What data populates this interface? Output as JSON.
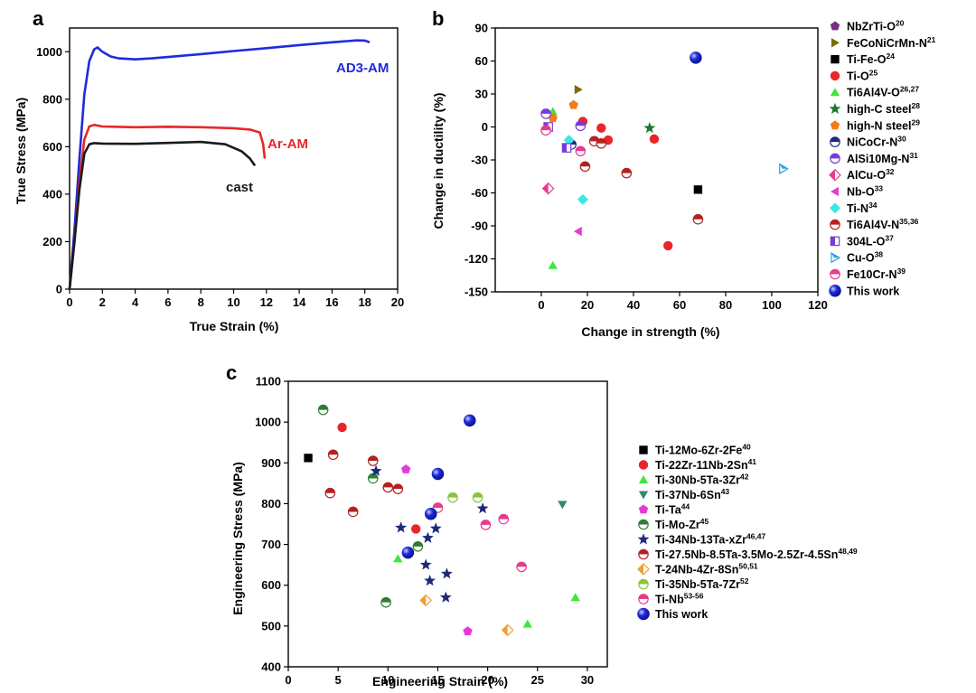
{
  "colors": {
    "blue": "#1f2bdb",
    "red": "#e8262a",
    "black": "#1a1a1a"
  },
  "chart_data": [
    {
      "panel": "a",
      "type": "line",
      "xlabel": "True Strain (%)",
      "ylabel": "True Stress (MPa)",
      "xlim": [
        0,
        20
      ],
      "ylim": [
        0,
        1100
      ],
      "xticks": [
        0,
        2,
        4,
        6,
        8,
        10,
        12,
        14,
        16,
        18,
        20
      ],
      "yticks": [
        0,
        200,
        400,
        600,
        800,
        1000
      ],
      "series": [
        {
          "name": "AD3-AM",
          "color": "#1f2bdb",
          "x": [
            0,
            0.3,
            0.6,
            0.9,
            1.2,
            1.5,
            1.7,
            2.0,
            2.5,
            3.0,
            4.0,
            5.0,
            6.0,
            8.0,
            10.0,
            12.0,
            14.0,
            16.0,
            17.5,
            18.0,
            18.3
          ],
          "y": [
            0,
            250,
            550,
            820,
            960,
            1010,
            1018,
            1000,
            980,
            972,
            968,
            972,
            978,
            990,
            1003,
            1015,
            1028,
            1040,
            1048,
            1047,
            1040
          ]
        },
        {
          "name": "Ar-AM",
          "color": "#e8262a",
          "x": [
            0,
            0.3,
            0.6,
            0.9,
            1.2,
            1.5,
            2.0,
            4.0,
            6.0,
            8.0,
            10.0,
            11.0,
            11.6,
            11.8,
            11.9
          ],
          "y": [
            0,
            200,
            450,
            630,
            685,
            692,
            685,
            682,
            684,
            682,
            678,
            672,
            660,
            610,
            550
          ]
        },
        {
          "name": "cast",
          "color": "#1a1a1a",
          "x": [
            0,
            0.3,
            0.6,
            0.9,
            1.2,
            1.5,
            2.0,
            4.0,
            6.0,
            8.0,
            9.5,
            10.5,
            11.0,
            11.3
          ],
          "y": [
            0,
            200,
            420,
            570,
            610,
            615,
            613,
            612,
            616,
            620,
            610,
            580,
            550,
            520
          ]
        }
      ]
    },
    {
      "panel": "b",
      "type": "scatter",
      "xlabel": "Change in strength (%)",
      "ylabel": "Change in ductility (%)",
      "xlim": [
        -20,
        120
      ],
      "ylim": [
        -150,
        90
      ],
      "xticks": [
        0,
        20,
        40,
        60,
        80,
        100,
        120
      ],
      "yticks": [
        -150,
        -120,
        -90,
        -60,
        -30,
        0,
        30,
        60,
        90
      ],
      "series": [
        {
          "name": "NbZrTi-O",
          "sup": "20",
          "marker": "pentagon",
          "color": "#7b2d7e",
          "points": [
            [
              17,
              1
            ]
          ]
        },
        {
          "name": "FeCoNiCrMn-N",
          "sup": "21",
          "marker": "tri-right",
          "color": "#7d6a12",
          "points": [
            [
              16,
              34
            ]
          ]
        },
        {
          "name": "Ti-Fe-O",
          "sup": "24",
          "marker": "square",
          "color": "#000000",
          "points": [
            [
              68,
              -57
            ]
          ]
        },
        {
          "name": "Ti-O",
          "sup": "25",
          "marker": "circle",
          "color": "#e8262a",
          "points": [
            [
              18,
              5
            ],
            [
              26,
              -1
            ],
            [
              29,
              -12
            ],
            [
              49,
              -11
            ],
            [
              55,
              -108
            ]
          ]
        },
        {
          "name": "Ti6Al4V-O",
          "sup": "26,27",
          "marker": "tri-up",
          "color": "#3ee63e",
          "points": [
            [
              5,
              14
            ],
            [
              5,
              -126
            ]
          ]
        },
        {
          "name": "high-C steel",
          "sup": "28",
          "marker": "star",
          "color": "#1d7a2a",
          "points": [
            [
              47,
              -1
            ]
          ]
        },
        {
          "name": "high-N steel",
          "sup": "29",
          "marker": "pentagon",
          "color": "#f07c1a",
          "points": [
            [
              14,
              20
            ],
            [
              5,
              8
            ]
          ]
        },
        {
          "name": "NiCoCr-N",
          "sup": "30",
          "marker": "half-circle",
          "color": "#1d2a7a",
          "points": [
            [
              13,
              -16
            ]
          ]
        },
        {
          "name": "AlSi10Mg-N",
          "sup": "31",
          "marker": "half-circle",
          "color": "#7a3ad6",
          "points": [
            [
              2,
              12
            ],
            [
              17,
              1
            ]
          ]
        },
        {
          "name": "AlCu-O",
          "sup": "32",
          "marker": "half-diamond",
          "color": "#e63a8e",
          "points": [
            [
              3,
              -56
            ]
          ]
        },
        {
          "name": "Nb-O",
          "sup": "33",
          "marker": "tri-left",
          "color": "#e63ad6",
          "points": [
            [
              16,
              -95
            ]
          ]
        },
        {
          "name": "Ti-N",
          "sup": "34",
          "marker": "diamond",
          "color": "#3ae6e6",
          "points": [
            [
              12,
              -12
            ],
            [
              18,
              -66
            ]
          ]
        },
        {
          "name": "Ti6Al4V-N",
          "sup": "35,36",
          "marker": "half-circle",
          "color": "#b22222",
          "points": [
            [
              19,
              -36
            ],
            [
              23,
              -13
            ],
            [
              26,
              -15
            ],
            [
              37,
              -42
            ],
            [
              68,
              -84
            ]
          ]
        },
        {
          "name": "304L-O",
          "sup": "37",
          "marker": "half-square",
          "color": "#7a3ad6",
          "points": [
            [
              3,
              0
            ],
            [
              11,
              -19
            ]
          ]
        },
        {
          "name": "Cu-O",
          "sup": "38",
          "marker": "half-tri-right",
          "color": "#2a9ee6",
          "points": [
            [
              105,
              -38
            ]
          ]
        },
        {
          "name": "Fe10Cr-N",
          "sup": "39",
          "marker": "half-circle",
          "color": "#e63a8e",
          "points": [
            [
              17,
              -22
            ],
            [
              2,
              -3
            ]
          ]
        },
        {
          "name": "This work",
          "sup": "",
          "marker": "ball",
          "color": "#1f2bdb",
          "points": [
            [
              67,
              63
            ]
          ]
        }
      ]
    },
    {
      "panel": "c",
      "type": "scatter",
      "xlabel": "Engineering Strain (%)",
      "ylabel": "Engineering Stress (MPa)",
      "xlim": [
        0,
        32
      ],
      "ylim": [
        400,
        1100
      ],
      "xticks": [
        0,
        5,
        10,
        15,
        20,
        25,
        30
      ],
      "yticks": [
        400,
        500,
        600,
        700,
        800,
        900,
        1000,
        1100
      ],
      "series": [
        {
          "name": "Ti-12Mo-6Zr-2Fe",
          "sup": "40",
          "marker": "square",
          "color": "#000000",
          "points": [
            [
              2,
              912
            ]
          ]
        },
        {
          "name": "Ti-22Zr-11Nb-2Sn",
          "sup": "41",
          "marker": "circle",
          "color": "#e8262a",
          "points": [
            [
              5.4,
              987
            ],
            [
              12.8,
              738
            ]
          ]
        },
        {
          "name": "Ti-30Nb-5Ta-3Zr",
          "sup": "42",
          "marker": "tri-up",
          "color": "#3ee63e",
          "points": [
            [
              11,
              665
            ],
            [
              24,
              505
            ],
            [
              28.8,
              570
            ]
          ]
        },
        {
          "name": "Ti-37Nb-6Sn",
          "sup": "43",
          "marker": "tri-down",
          "color": "#2e8b6e",
          "points": [
            [
              27.5,
              798
            ]
          ]
        },
        {
          "name": "Ti-Ta",
          "sup": "44",
          "marker": "pentagon",
          "color": "#e63ad6",
          "points": [
            [
              11.8,
              884
            ],
            [
              18,
              487
            ]
          ]
        },
        {
          "name": "Ti-Mo-Zr",
          "sup": "45",
          "marker": "half-circle",
          "color": "#2e7d32",
          "points": [
            [
              3.5,
              1030
            ],
            [
              8.5,
              862
            ],
            [
              9.8,
              558
            ],
            [
              13,
              695
            ]
          ]
        },
        {
          "name": "Ti-34Nb-13Ta-xZr",
          "sup": "46,47",
          "marker": "star",
          "color": "#1d2a7a",
          "points": [
            [
              8.8,
              880
            ],
            [
              11.3,
              741
            ],
            [
              14,
              716
            ],
            [
              14.8,
              739
            ],
            [
              13.8,
              650
            ],
            [
              14.2,
              611
            ],
            [
              15.8,
              570
            ],
            [
              15.9,
              628
            ],
            [
              19.5,
              788
            ]
          ]
        },
        {
          "name": "Ti-27.5Nb-8.5Ta-3.5Mo-2.5Zr-4.5Sn",
          "sup": "48,49",
          "marker": "half-circle",
          "color": "#b22222",
          "points": [
            [
              4.5,
              920
            ],
            [
              8.5,
              905
            ],
            [
              4.2,
              826
            ],
            [
              6.5,
              780
            ],
            [
              10,
              840
            ],
            [
              11,
              836
            ]
          ]
        },
        {
          "name": "T-24Nb-4Zr-8Sn",
          "sup": "50,51",
          "marker": "half-diamond",
          "color": "#f0a030",
          "points": [
            [
              13.8,
              563
            ],
            [
              22,
              490
            ]
          ]
        },
        {
          "name": "Ti-35Nb-5Ta-7Zr",
          "sup": "52",
          "marker": "half-circle",
          "color": "#8ac43a",
          "points": [
            [
              16.5,
              815
            ],
            [
              19,
              815
            ]
          ]
        },
        {
          "name": "Ti-Nb",
          "sup": "53-56",
          "marker": "half-circle",
          "color": "#e63a8e",
          "points": [
            [
              15,
              790
            ],
            [
              19.8,
              748
            ],
            [
              21.6,
              762
            ],
            [
              23.4,
              645
            ]
          ]
        },
        {
          "name": "This work",
          "sup": "",
          "marker": "ball",
          "color": "#1f2bdb",
          "points": [
            [
              12,
              680
            ],
            [
              14.3,
              775
            ],
            [
              15,
              873
            ],
            [
              18.2,
              1004
            ]
          ]
        }
      ]
    }
  ]
}
